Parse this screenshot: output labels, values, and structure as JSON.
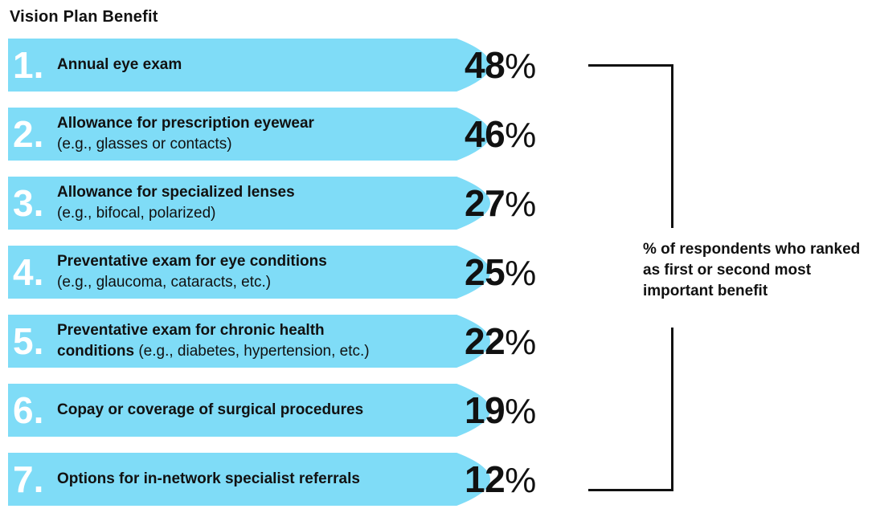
{
  "chart_data": {
    "type": "bar",
    "title": "Vision Plan Benefit",
    "annotation": "% of respondents who ranked as first or second most important benefit",
    "unit": "%",
    "items": [
      {
        "rank": "1.",
        "label": "Annual eye exam",
        "note": "",
        "value": 48
      },
      {
        "rank": "2.",
        "label": "Allowance for prescription eyewear",
        "note": "(e.g., glasses or contacts)",
        "value": 46
      },
      {
        "rank": "3.",
        "label": "Allowance for specialized lenses",
        "note": "(e.g., bifocal, polarized)",
        "value": 27
      },
      {
        "rank": "4.",
        "label": "Preventative exam for eye conditions",
        "note": "(e.g., glaucoma, cataracts, etc.)",
        "value": 25
      },
      {
        "rank": "5.",
        "label": "Preventative exam for chronic health conditions",
        "note": "(e.g., diabetes, hypertension, etc.)",
        "value": 22
      },
      {
        "rank": "6.",
        "label": "Copay or coverage of surgical procedures",
        "note": "",
        "value": 19
      },
      {
        "rank": "7.",
        "label": "Options for in-network specialist referrals",
        "note": "",
        "value": 12
      }
    ],
    "colors": {
      "bar": "#7fdcf7",
      "rank_text": "#ffffff",
      "text": "#111111",
      "bracket": "#111111"
    }
  }
}
